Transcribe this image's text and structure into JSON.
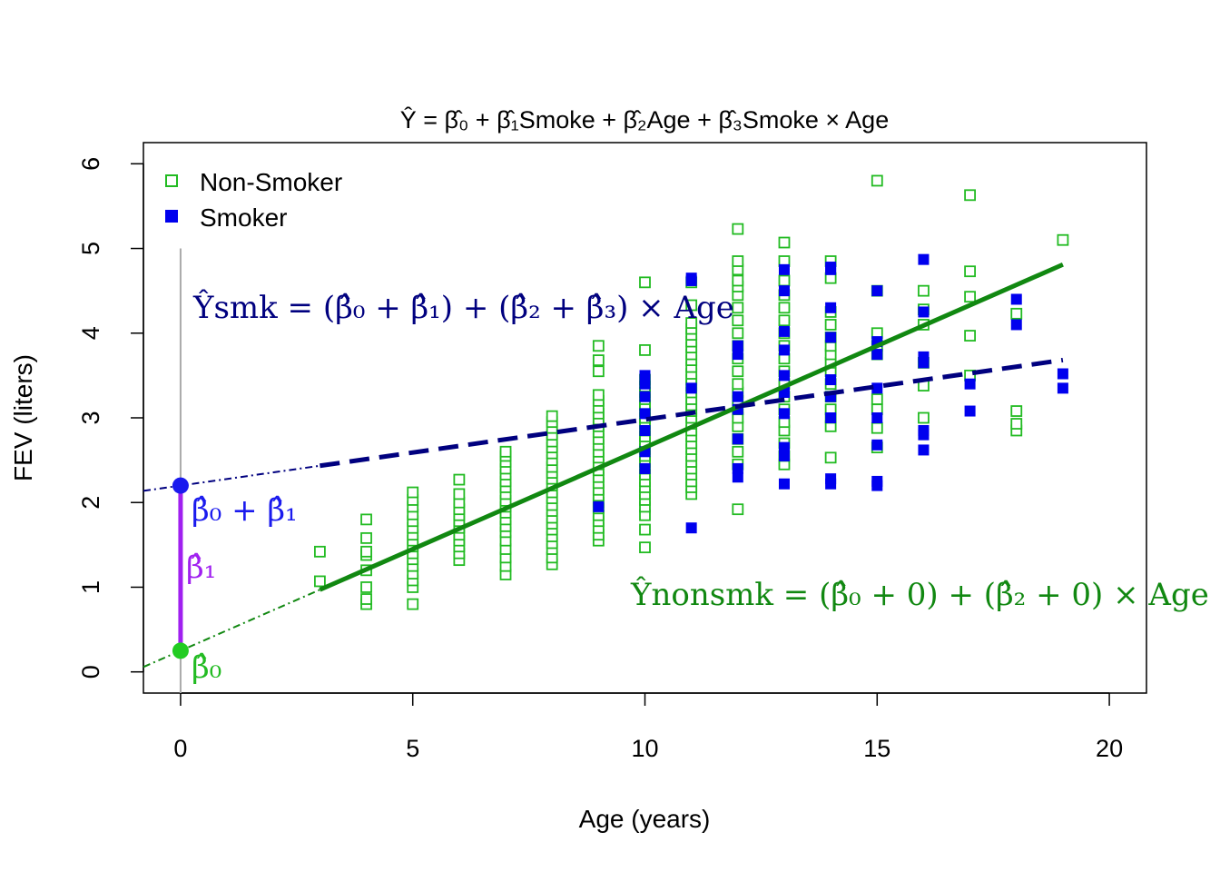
{
  "chart_data": {
    "type": "scatter",
    "title": "Ŷ = β̂₀ + β̂₁Smoke + β̂₂Age + β̂₃Smoke × Age",
    "xlabel": "Age (years)",
    "ylabel": "FEV (liters)",
    "xlim": [
      -0.8,
      20.8
    ],
    "ylim": [
      -0.25,
      6.25
    ],
    "x_ticks": [
      0,
      5,
      10,
      15,
      20
    ],
    "y_ticks": [
      0,
      1,
      2,
      3,
      4,
      5,
      6
    ],
    "grid": false,
    "legend": {
      "position": "top-left",
      "entries": [
        {
          "label": "Non-Smoker",
          "marker": "open-square",
          "color": "#22bb22"
        },
        {
          "label": "Smoker",
          "marker": "filled-square",
          "color": "#0000ee"
        }
      ]
    },
    "colors": {
      "nonsmoker": "#22bb22",
      "smoker": "#0000ee",
      "nonsmoker_line": "#118811",
      "smoker_line": "#00007f",
      "beta1": "#a020f0",
      "beta0_point": "#22cc22",
      "intercept_point": "#1a1aee",
      "zero_line": "#aaaaaa"
    },
    "lines": {
      "nonsmoker": {
        "intercept": 0.25,
        "slope": 0.24,
        "fit_range": [
          3,
          19
        ]
      },
      "smoker": {
        "intercept": 2.2,
        "slope": 0.078,
        "fit_range": [
          3,
          19
        ]
      }
    },
    "annotations": {
      "smk_eq": "Ŷsmk = (β̂₀ + β̂₁) + (β̂₂ + β̂₃) × Age",
      "nonsmk_eq": "Ŷnonsmk = (β̂₀ + 0) + (β̂₂ + 0) × Age",
      "b0b1": "β̂₀ + β̂₁",
      "b1": "β̂₁",
      "b0": "β̂₀"
    },
    "series": [
      {
        "name": "Non-Smoker",
        "points": [
          [
            3,
            1.07
          ],
          [
            3,
            1.42
          ],
          [
            4,
            0.8
          ],
          [
            4,
            0.86
          ],
          [
            4,
            1.0
          ],
          [
            4,
            1.2
          ],
          [
            4,
            1.38
          ],
          [
            4,
            1.42
          ],
          [
            4,
            1.58
          ],
          [
            4,
            1.8
          ],
          [
            5,
            0.8
          ],
          [
            5,
            1.0
          ],
          [
            5,
            1.08
          ],
          [
            5,
            1.16
          ],
          [
            5,
            1.25
          ],
          [
            5,
            1.33
          ],
          [
            5,
            1.4
          ],
          [
            5,
            1.48
          ],
          [
            5,
            1.55
          ],
          [
            5,
            1.62
          ],
          [
            5,
            1.7
          ],
          [
            5,
            1.78
          ],
          [
            5,
            1.86
          ],
          [
            5,
            1.95
          ],
          [
            5,
            2.03
          ],
          [
            5,
            2.12
          ],
          [
            6,
            1.32
          ],
          [
            6,
            1.4
          ],
          [
            6,
            1.48
          ],
          [
            6,
            1.55
          ],
          [
            6,
            1.62
          ],
          [
            6,
            1.7
          ],
          [
            6,
            1.78
          ],
          [
            6,
            1.85
          ],
          [
            6,
            1.92
          ],
          [
            6,
            2.0
          ],
          [
            6,
            2.1
          ],
          [
            6,
            2.27
          ],
          [
            7,
            1.15
          ],
          [
            7,
            1.25
          ],
          [
            7,
            1.35
          ],
          [
            7,
            1.45
          ],
          [
            7,
            1.55
          ],
          [
            7,
            1.65
          ],
          [
            7,
            1.72
          ],
          [
            7,
            1.8
          ],
          [
            7,
            1.88
          ],
          [
            7,
            1.95
          ],
          [
            7,
            2.02
          ],
          [
            7,
            2.1
          ],
          [
            7,
            2.18
          ],
          [
            7,
            2.25
          ],
          [
            7,
            2.33
          ],
          [
            7,
            2.4
          ],
          [
            7,
            2.48
          ],
          [
            7,
            2.55
          ],
          [
            7,
            2.6
          ],
          [
            8,
            1.27
          ],
          [
            8,
            1.35
          ],
          [
            8,
            1.45
          ],
          [
            8,
            1.52
          ],
          [
            8,
            1.6
          ],
          [
            8,
            1.68
          ],
          [
            8,
            1.75
          ],
          [
            8,
            1.82
          ],
          [
            8,
            1.9
          ],
          [
            8,
            1.97
          ],
          [
            8,
            2.05
          ],
          [
            8,
            2.12
          ],
          [
            8,
            2.2
          ],
          [
            8,
            2.28
          ],
          [
            8,
            2.35
          ],
          [
            8,
            2.42
          ],
          [
            8,
            2.5
          ],
          [
            8,
            2.58
          ],
          [
            8,
            2.65
          ],
          [
            8,
            2.72
          ],
          [
            8,
            2.8
          ],
          [
            8,
            2.88
          ],
          [
            8,
            2.95
          ],
          [
            8,
            3.02
          ],
          [
            9,
            1.55
          ],
          [
            9,
            1.62
          ],
          [
            9,
            1.7
          ],
          [
            9,
            1.78
          ],
          [
            9,
            1.85
          ],
          [
            9,
            1.93
          ],
          [
            9,
            2.0
          ],
          [
            9,
            2.08
          ],
          [
            9,
            2.15
          ],
          [
            9,
            2.23
          ],
          [
            9,
            2.3
          ],
          [
            9,
            2.38
          ],
          [
            9,
            2.45
          ],
          [
            9,
            2.53
          ],
          [
            9,
            2.6
          ],
          [
            9,
            2.68
          ],
          [
            9,
            2.75
          ],
          [
            9,
            2.83
          ],
          [
            9,
            2.9
          ],
          [
            9,
            2.98
          ],
          [
            9,
            3.05
          ],
          [
            9,
            3.12
          ],
          [
            9,
            3.2
          ],
          [
            9,
            3.27
          ],
          [
            9,
            3.55
          ],
          [
            9,
            3.68
          ],
          [
            9,
            3.85
          ],
          [
            10,
            1.47
          ],
          [
            10,
            1.68
          ],
          [
            10,
            1.85
          ],
          [
            10,
            1.95
          ],
          [
            10,
            2.03
          ],
          [
            10,
            2.1
          ],
          [
            10,
            2.18
          ],
          [
            10,
            2.25
          ],
          [
            10,
            2.33
          ],
          [
            10,
            2.4
          ],
          [
            10,
            2.48
          ],
          [
            10,
            2.55
          ],
          [
            10,
            2.63
          ],
          [
            10,
            2.7
          ],
          [
            10,
            2.78
          ],
          [
            10,
            2.85
          ],
          [
            10,
            2.93
          ],
          [
            10,
            3.0
          ],
          [
            10,
            3.08
          ],
          [
            10,
            3.15
          ],
          [
            10,
            3.22
          ],
          [
            10,
            3.3
          ],
          [
            10,
            3.37
          ],
          [
            10,
            3.45
          ],
          [
            10,
            3.8
          ],
          [
            10,
            4.6
          ],
          [
            11,
            2.1
          ],
          [
            11,
            2.18
          ],
          [
            11,
            2.25
          ],
          [
            11,
            2.33
          ],
          [
            11,
            2.4
          ],
          [
            11,
            2.48
          ],
          [
            11,
            2.55
          ],
          [
            11,
            2.63
          ],
          [
            11,
            2.7
          ],
          [
            11,
            2.78
          ],
          [
            11,
            2.85
          ],
          [
            11,
            2.93
          ],
          [
            11,
            3.0
          ],
          [
            11,
            3.08
          ],
          [
            11,
            3.15
          ],
          [
            11,
            3.22
          ],
          [
            11,
            3.3
          ],
          [
            11,
            3.38
          ],
          [
            11,
            3.45
          ],
          [
            11,
            3.52
          ],
          [
            11,
            3.6
          ],
          [
            11,
            3.68
          ],
          [
            11,
            3.75
          ],
          [
            11,
            3.83
          ],
          [
            11,
            3.9
          ],
          [
            11,
            3.98
          ],
          [
            11,
            4.05
          ],
          [
            11,
            4.12
          ],
          [
            11,
            4.33
          ],
          [
            11,
            4.6
          ],
          [
            12,
            1.92
          ],
          [
            12,
            2.45
          ],
          [
            12,
            2.6
          ],
          [
            12,
            2.75
          ],
          [
            12,
            2.9
          ],
          [
            12,
            3.0
          ],
          [
            12,
            3.1
          ],
          [
            12,
            3.2
          ],
          [
            12,
            3.3
          ],
          [
            12,
            3.4
          ],
          [
            12,
            3.55
          ],
          [
            12,
            3.7
          ],
          [
            12,
            3.85
          ],
          [
            12,
            4.0
          ],
          [
            12,
            4.15
          ],
          [
            12,
            4.3
          ],
          [
            12,
            4.45
          ],
          [
            12,
            4.55
          ],
          [
            12,
            4.62
          ],
          [
            12,
            4.75
          ],
          [
            12,
            4.85
          ],
          [
            12,
            5.23
          ],
          [
            13,
            2.45
          ],
          [
            13,
            2.55
          ],
          [
            13,
            2.7
          ],
          [
            13,
            2.85
          ],
          [
            13,
            2.95
          ],
          [
            13,
            3.1
          ],
          [
            13,
            3.25
          ],
          [
            13,
            3.4
          ],
          [
            13,
            3.55
          ],
          [
            13,
            3.7
          ],
          [
            13,
            3.85
          ],
          [
            13,
            4.0
          ],
          [
            13,
            4.15
          ],
          [
            13,
            4.3
          ],
          [
            13,
            4.45
          ],
          [
            13,
            4.62
          ],
          [
            13,
            4.85
          ],
          [
            13,
            5.07
          ],
          [
            14,
            2.53
          ],
          [
            14,
            2.9
          ],
          [
            14,
            3.0
          ],
          [
            14,
            3.1
          ],
          [
            14,
            3.25
          ],
          [
            14,
            3.4
          ],
          [
            14,
            3.55
          ],
          [
            14,
            3.65
          ],
          [
            14,
            3.75
          ],
          [
            14,
            3.85
          ],
          [
            14,
            3.95
          ],
          [
            14,
            4.1
          ],
          [
            14,
            4.25
          ],
          [
            14,
            4.65
          ],
          [
            14,
            4.85
          ],
          [
            15,
            2.65
          ],
          [
            15,
            2.88
          ],
          [
            15,
            3.1
          ],
          [
            15,
            3.22
          ],
          [
            15,
            3.75
          ],
          [
            15,
            3.85
          ],
          [
            15,
            4.0
          ],
          [
            15,
            4.5
          ],
          [
            15,
            5.8
          ],
          [
            16,
            3.0
          ],
          [
            16,
            3.38
          ],
          [
            16,
            3.65
          ],
          [
            16,
            4.1
          ],
          [
            16,
            4.28
          ],
          [
            16,
            4.5
          ],
          [
            17,
            3.5
          ],
          [
            17,
            3.97
          ],
          [
            17,
            4.43
          ],
          [
            17,
            4.73
          ],
          [
            17,
            5.63
          ],
          [
            18,
            2.85
          ],
          [
            18,
            2.93
          ],
          [
            18,
            3.08
          ],
          [
            18,
            4.23
          ],
          [
            19,
            5.1
          ]
        ]
      },
      {
        "name": "Smoker",
        "points": [
          [
            9,
            1.95
          ],
          [
            10,
            2.4
          ],
          [
            10,
            2.6
          ],
          [
            10,
            2.85
          ],
          [
            10,
            3.05
          ],
          [
            10,
            3.25
          ],
          [
            10,
            3.4
          ],
          [
            10,
            3.5
          ],
          [
            11,
            1.7
          ],
          [
            11,
            3.35
          ],
          [
            11,
            4.62
          ],
          [
            11,
            4.65
          ],
          [
            12,
            2.3
          ],
          [
            12,
            2.4
          ],
          [
            12,
            2.75
          ],
          [
            12,
            3.1
          ],
          [
            12,
            3.25
          ],
          [
            12,
            3.75
          ],
          [
            12,
            3.85
          ],
          [
            13,
            2.22
          ],
          [
            13,
            2.55
          ],
          [
            13,
            2.65
          ],
          [
            13,
            3.05
          ],
          [
            13,
            3.3
          ],
          [
            13,
            3.5
          ],
          [
            13,
            3.8
          ],
          [
            13,
            4.02
          ],
          [
            13,
            4.5
          ],
          [
            13,
            4.75
          ],
          [
            14,
            2.22
          ],
          [
            14,
            2.28
          ],
          [
            14,
            3.0
          ],
          [
            14,
            3.25
          ],
          [
            14,
            3.45
          ],
          [
            14,
            3.95
          ],
          [
            14,
            4.3
          ],
          [
            14,
            4.75
          ],
          [
            14,
            4.78
          ],
          [
            15,
            2.2
          ],
          [
            15,
            2.25
          ],
          [
            15,
            2.68
          ],
          [
            15,
            3.0
          ],
          [
            15,
            3.35
          ],
          [
            15,
            3.75
          ],
          [
            15,
            3.9
          ],
          [
            15,
            4.5
          ],
          [
            16,
            2.62
          ],
          [
            16,
            2.8
          ],
          [
            16,
            2.85
          ],
          [
            16,
            3.65
          ],
          [
            16,
            3.72
          ],
          [
            16,
            4.25
          ],
          [
            16,
            4.87
          ],
          [
            17,
            3.08
          ],
          [
            17,
            3.4
          ],
          [
            18,
            4.1
          ],
          [
            18,
            4.4
          ],
          [
            19,
            3.35
          ],
          [
            19,
            3.52
          ]
        ]
      }
    ]
  }
}
